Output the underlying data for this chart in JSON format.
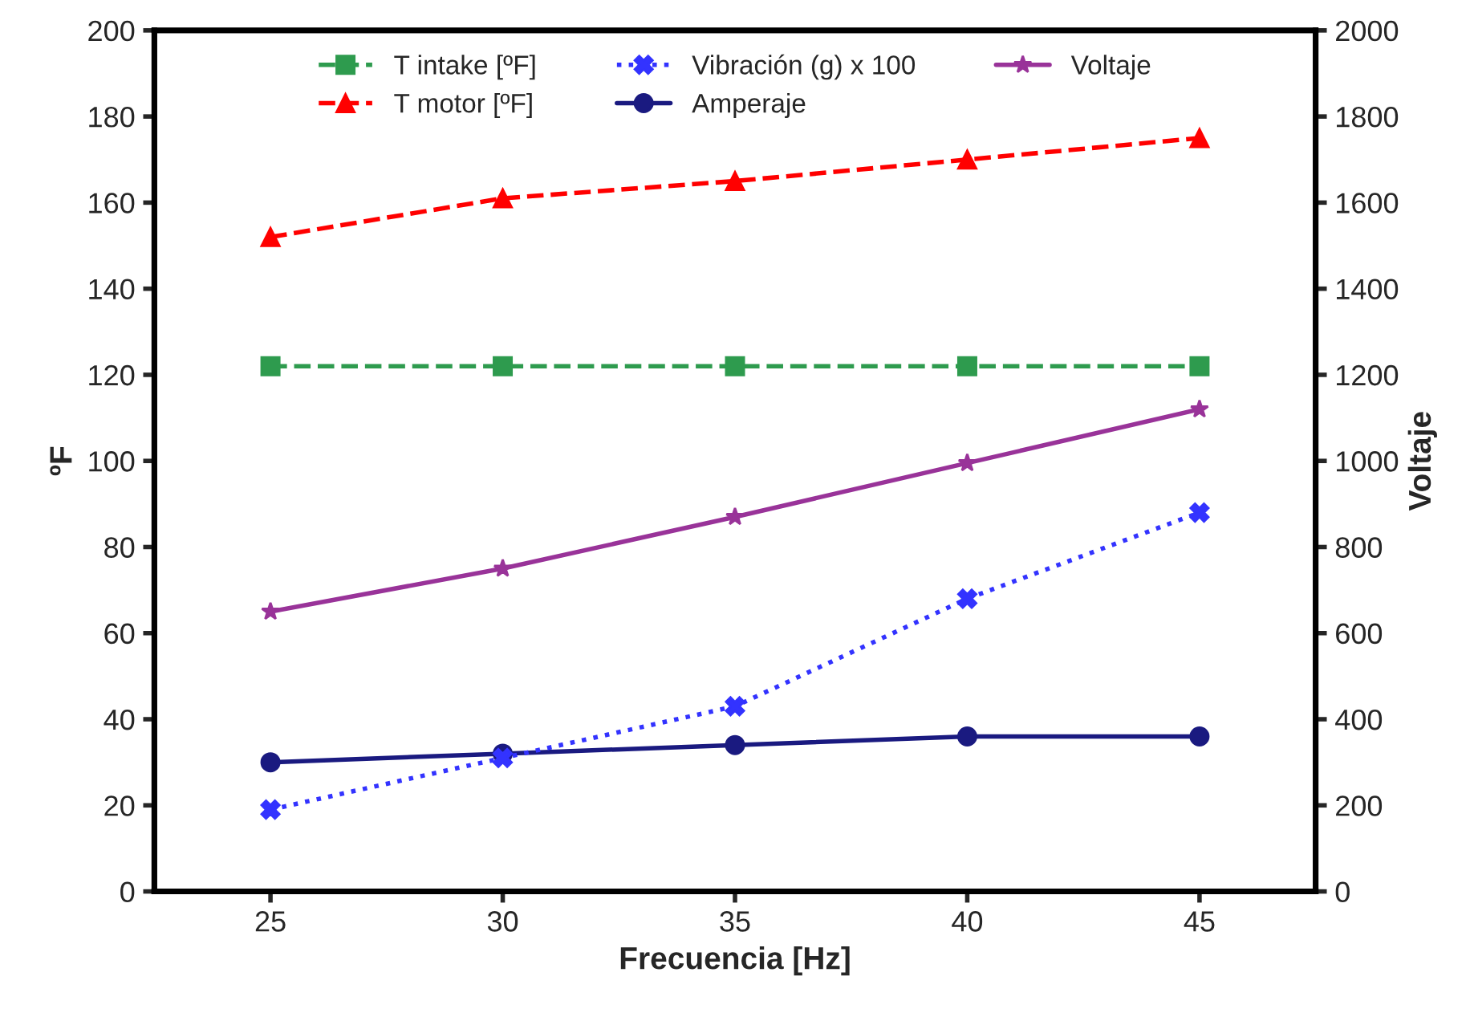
{
  "chart_data": {
    "type": "line",
    "xlabel": "Frecuencia [Hz]",
    "ylabel": "ºF",
    "y2label": "Voltaje",
    "categories": [
      "25",
      "30",
      "35",
      "40",
      "45"
    ],
    "series": [
      {
        "name": "T intake [ºF]",
        "color": "#2e9b4e",
        "values": [
          122,
          122,
          122,
          122,
          122
        ],
        "marker": "square",
        "line_style": "dashed"
      },
      {
        "name": "T motor [ºF]",
        "color": "#ff0000",
        "values": [
          152,
          161,
          165,
          170,
          175
        ],
        "marker": "triangle",
        "line_style": "dashed"
      },
      {
        "name": "Vibración (g) x 100",
        "color": "#3333ff",
        "values": [
          19,
          31,
          43,
          68,
          88
        ],
        "marker": "cross",
        "line_style": "dotted"
      },
      {
        "name": "Amperaje",
        "color": "#1a1a80",
        "values": [
          30,
          32,
          34,
          36,
          36
        ],
        "marker": "circle",
        "line_style": "solid"
      },
      {
        "name": "Voltaje",
        "color": "#993399",
        "values": [
          650,
          750,
          870,
          995,
          1120
        ],
        "marker": "star",
        "line_style": "solid",
        "axis": "y2"
      }
    ],
    "ylim": [
      0,
      200
    ],
    "yticks": [
      0,
      20,
      40,
      60,
      80,
      100,
      120,
      140,
      160,
      180,
      200
    ],
    "y2lim": [
      0,
      2000
    ],
    "y2ticks": [
      0,
      200,
      400,
      600,
      800,
      1000,
      1200,
      1400,
      1600,
      1800,
      2000
    ],
    "legend": "top",
    "grid": false
  }
}
